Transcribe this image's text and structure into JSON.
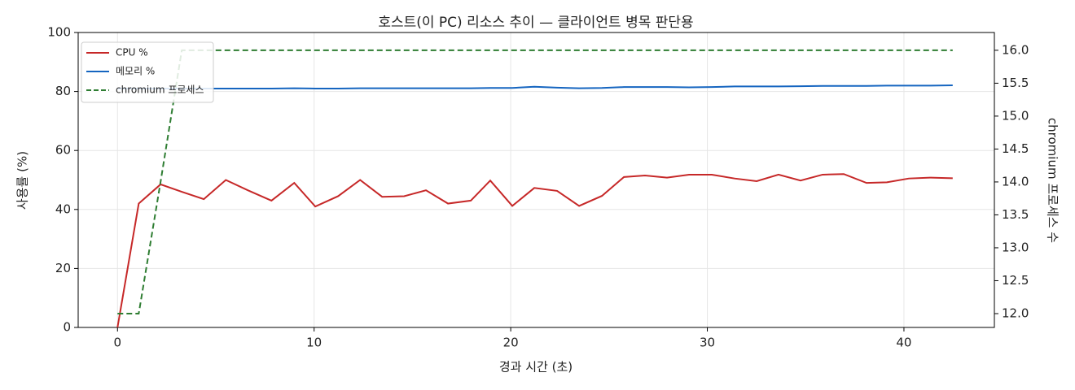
{
  "chart_data": {
    "type": "line",
    "title": "호스트(이 PC) 리소스 추이 — 클라이언트 병목 판단용",
    "x_label": "경과 시간 (초)",
    "y_label": "사용률 (%)",
    "y2_label": "chromium 프로세스 수",
    "x": [
      0,
      1.08,
      2.19,
      3.27,
      4.39,
      5.51,
      6.63,
      7.83,
      8.99,
      10.06,
      11.22,
      12.34,
      13.46,
      14.58,
      15.69,
      16.81,
      17.97,
      18.96,
      20.08,
      21.2,
      22.36,
      23.48,
      24.64,
      25.76,
      26.83,
      27.95,
      29.07,
      30.23,
      31.39,
      32.51,
      33.62,
      34.74,
      35.86,
      36.94,
      38.1,
      39.13,
      40.25,
      41.33,
      42.48
    ],
    "series": [
      {
        "name": "CPU %",
        "color": "#c62828",
        "linestyle": "solid",
        "values": [
          0,
          42,
          48.5,
          46,
          43.5,
          50,
          46.5,
          43,
          49,
          41,
          44.5,
          50,
          44.3,
          44.5,
          46.5,
          42,
          43,
          49.8,
          41.2,
          47.3,
          46.3,
          41.2,
          44.6,
          51,
          51.5,
          50.8,
          51.8,
          51.8,
          50.5,
          49.6,
          51.8,
          49.8,
          51.8,
          52,
          49,
          49.2,
          50.5,
          50.8,
          50.6
        ]
      },
      {
        "name": "메모리 %",
        "color": "#1565c0",
        "linestyle": "solid",
        "values": [
          81,
          81,
          81,
          81,
          81,
          81,
          81,
          81,
          81.1,
          81,
          81,
          81.1,
          81.1,
          81.1,
          81.1,
          81.1,
          81.1,
          81.2,
          81.2,
          81.6,
          81.3,
          81.1,
          81.2,
          81.5,
          81.5,
          81.5,
          81.4,
          81.5,
          81.7,
          81.7,
          81.7,
          81.8,
          81.9,
          81.9,
          81.9,
          82,
          82,
          82,
          82.1
        ]
      },
      {
        "name": "chromium 프로세스",
        "color": "#2e7d32",
        "linestyle": "dashed",
        "axis": "y2",
        "values": [
          12,
          12,
          14,
          16,
          16,
          16,
          16,
          16,
          16,
          16,
          16,
          16,
          16,
          16,
          16,
          16,
          16,
          16,
          16,
          16,
          16,
          16,
          16,
          16,
          16,
          16,
          16,
          16,
          16,
          16,
          16,
          16,
          16,
          16,
          16,
          16,
          16,
          16,
          16
        ]
      }
    ],
    "xlim": [
      -2,
      44.6
    ],
    "xticks": [
      0,
      10,
      20,
      30,
      40
    ],
    "ylim": [
      0,
      100
    ],
    "yticks": [
      0,
      20,
      40,
      60,
      80,
      100
    ],
    "y2lim": [
      11.79,
      16.27
    ],
    "y2ticks": [
      {
        "value": 12,
        "label": "12.0"
      },
      12.5,
      {
        "value": 13,
        "label": "13.0"
      },
      13.5,
      {
        "value": 14,
        "label": "14.0"
      },
      14.5,
      {
        "value": 15,
        "label": "15.0"
      },
      15.5,
      {
        "value": 16,
        "label": "16.0"
      }
    ],
    "grid": true,
    "legend": "upper-left"
  }
}
